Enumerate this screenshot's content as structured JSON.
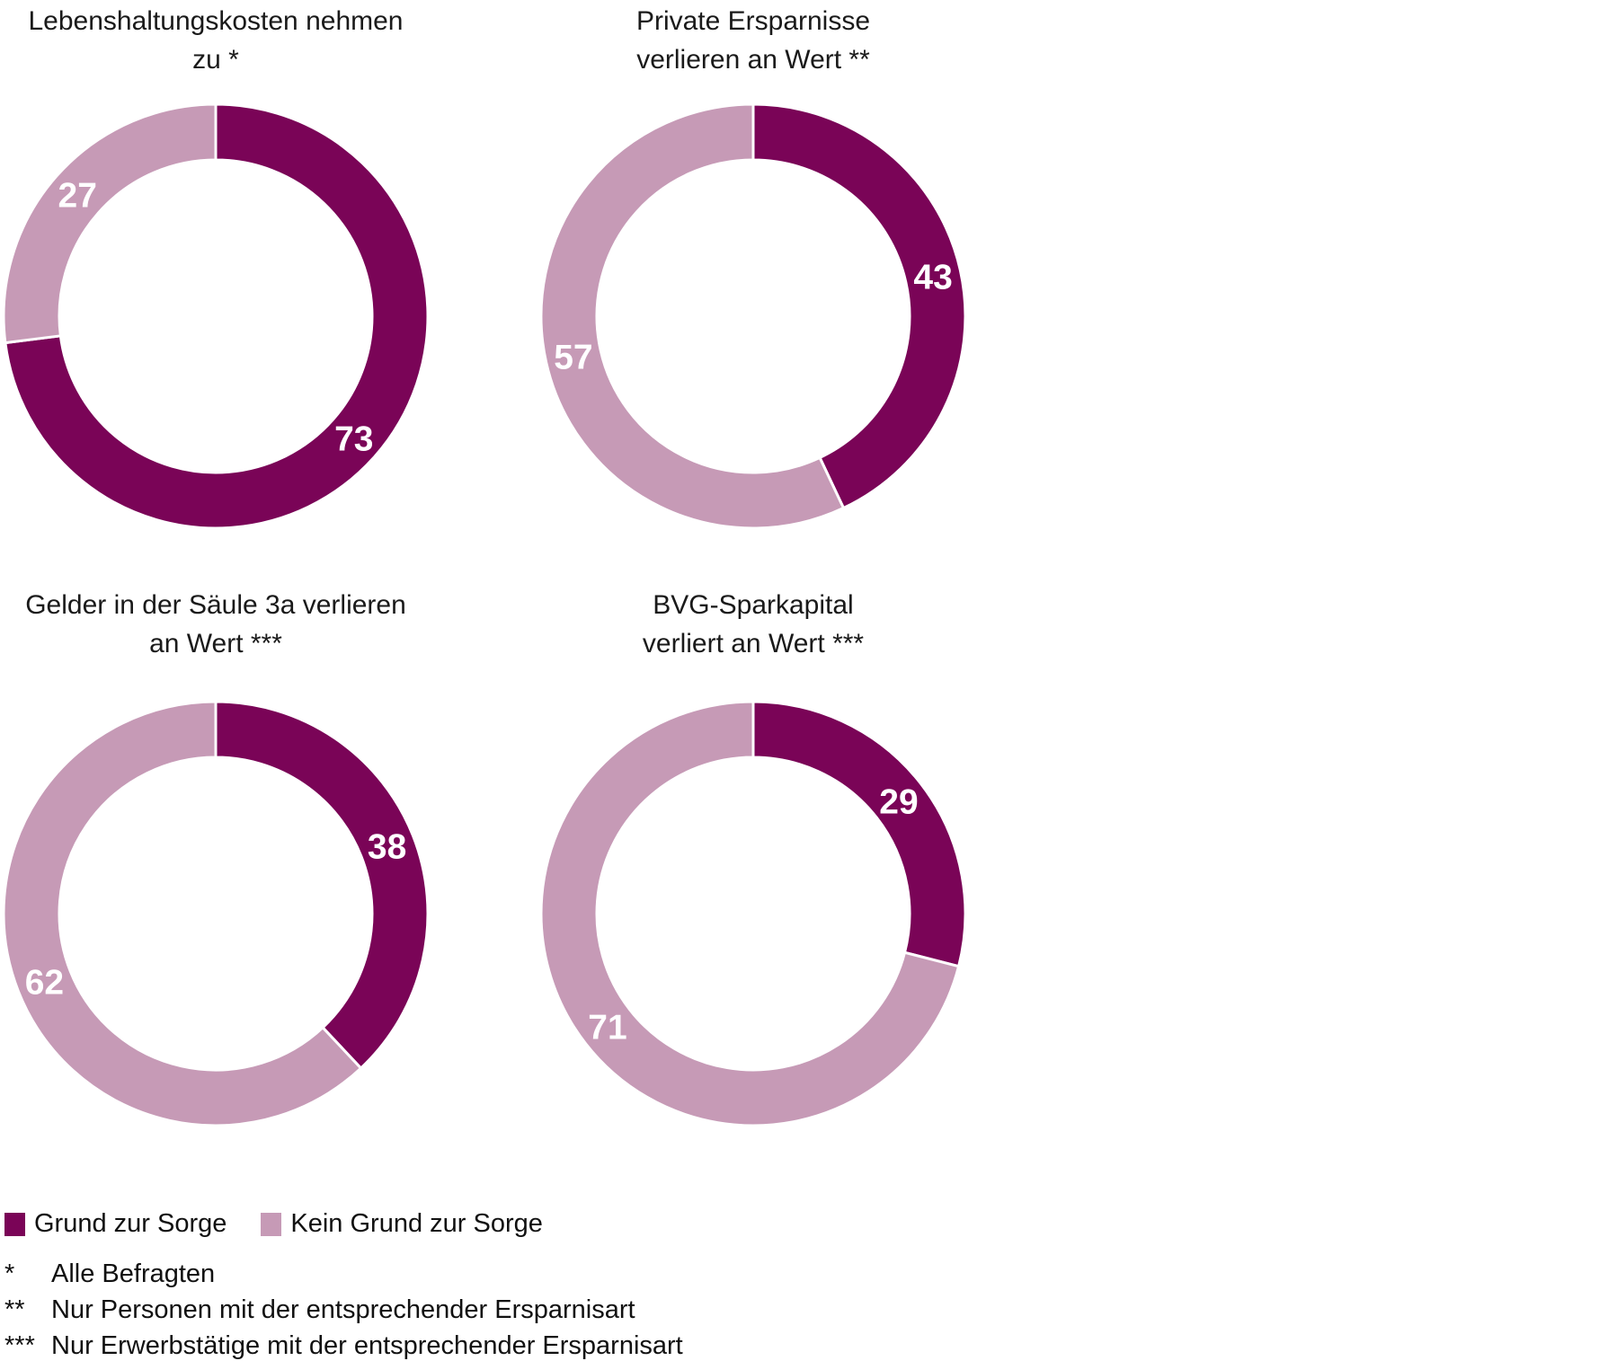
{
  "page": {
    "background": "#ffffff"
  },
  "colors": {
    "concern": "#7A0457",
    "no_concern": "#C69AB6",
    "slice_divider": "#ffffff",
    "data_label_text": "#ffffff",
    "title_text": "#1a1a1a"
  },
  "chart_data": [
    {
      "type": "pie",
      "subtype": "donut",
      "title": "Lebenshaltungskosten nehmen zu *",
      "title_line1": "Lebenshaltungskosten nehmen",
      "title_line2": "zu *",
      "categories": [
        "Grund zur Sorge",
        "Kein Grund zur Sorge"
      ],
      "values": [
        73,
        27
      ],
      "color_keys": [
        "concern",
        "no_concern"
      ],
      "start_angle_deg": 0,
      "direction": "clockwise",
      "data_labels_shown": true
    },
    {
      "type": "pie",
      "subtype": "donut",
      "title": "Private Ersparnisse verlieren an Wert **",
      "title_line1": "Private Ersparnisse",
      "title_line2": "verlieren an Wert **",
      "categories": [
        "Grund zur Sorge",
        "Kein Grund zur Sorge"
      ],
      "values": [
        43,
        57
      ],
      "color_keys": [
        "concern",
        "no_concern"
      ],
      "start_angle_deg": 0,
      "direction": "clockwise",
      "data_labels_shown": true
    },
    {
      "type": "pie",
      "subtype": "donut",
      "title": "Gelder in der Säule 3a verlieren an Wert ***",
      "title_line1": "Gelder in der Säule 3a verlieren",
      "title_line2": "an Wert ***",
      "categories": [
        "Grund zur Sorge",
        "Kein Grund zur Sorge"
      ],
      "values": [
        38,
        62
      ],
      "color_keys": [
        "concern",
        "no_concern"
      ],
      "start_angle_deg": 0,
      "direction": "clockwise",
      "data_labels_shown": true
    },
    {
      "type": "pie",
      "subtype": "donut",
      "title": "BVG-Sparkapital verliert an Wert ***",
      "title_line1": "BVG-Sparkapital",
      "title_line2": "verliert an Wert ***",
      "categories": [
        "Grund zur Sorge",
        "Kein Grund zur Sorge"
      ],
      "values": [
        29,
        71
      ],
      "color_keys": [
        "concern",
        "no_concern"
      ],
      "start_angle_deg": 0,
      "direction": "clockwise",
      "data_labels_shown": true
    }
  ],
  "legend": {
    "position": "bottom-left",
    "items": [
      {
        "label": "Grund zur Sorge",
        "color_key": "concern"
      },
      {
        "label": "Kein Grund zur Sorge",
        "color_key": "no_concern"
      }
    ]
  },
  "footnotes": [
    {
      "marker": "*",
      "text": "Alle Befragten"
    },
    {
      "marker": "**",
      "text": "Nur Personen mit der entsprechender Ersparnisart"
    },
    {
      "marker": "***",
      "text": "Nur Erwerbstätige mit der entsprechender Ersparnisart"
    }
  ]
}
